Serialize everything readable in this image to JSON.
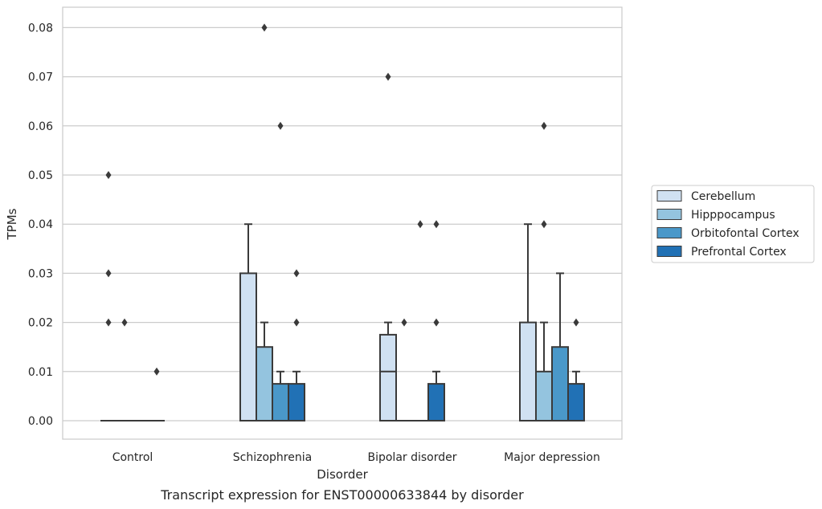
{
  "chart_data": {
    "type": "boxplot",
    "caption": "Transcript expression for ENST00000633844 by disorder",
    "xlabel": "Disorder",
    "ylabel": "TPMs",
    "ylim": [
      -0.004,
      0.084
    ],
    "yticks": [
      0.0,
      0.01,
      0.02,
      0.03,
      0.04,
      0.05,
      0.06,
      0.07,
      0.08
    ],
    "ytick_labels": [
      "0.00",
      "0.01",
      "0.02",
      "0.03",
      "0.04",
      "0.05",
      "0.06",
      "0.07",
      "0.08"
    ],
    "grid": "horizontal",
    "legend_position": "right",
    "categories": [
      "Control",
      "Schizophrenia",
      "Bipolar disorder",
      "Major depression"
    ],
    "series": [
      {
        "name": "Cerebellum",
        "color": "#d0e1f2",
        "boxes": [
          {
            "q1": 0,
            "median": 0,
            "q3": 0,
            "whisker_low": 0,
            "whisker_high": 0,
            "outliers": [
              0.05,
              0.03,
              0.02
            ]
          },
          {
            "q1": 0,
            "median": 0,
            "q3": 0.03,
            "whisker_low": 0,
            "whisker_high": 0.04,
            "outliers": []
          },
          {
            "q1": 0,
            "median": 0.01,
            "q3": 0.0175,
            "whisker_low": 0,
            "whisker_high": 0.02,
            "outliers": [
              0.07
            ]
          },
          {
            "q1": 0,
            "median": 0,
            "q3": 0.02,
            "whisker_low": 0,
            "whisker_high": 0.04,
            "outliers": []
          }
        ]
      },
      {
        "name": "Hipppocampus",
        "color": "#94c4df",
        "boxes": [
          {
            "q1": 0,
            "median": 0,
            "q3": 0,
            "whisker_low": 0,
            "whisker_high": 0,
            "outliers": [
              0.02
            ]
          },
          {
            "q1": 0,
            "median": 0,
            "q3": 0.015,
            "whisker_low": 0,
            "whisker_high": 0.02,
            "outliers": [
              0.08
            ]
          },
          {
            "q1": 0,
            "median": 0,
            "q3": 0,
            "whisker_low": 0,
            "whisker_high": 0,
            "outliers": [
              0.02
            ]
          },
          {
            "q1": 0,
            "median": 0,
            "q3": 0.01,
            "whisker_low": 0,
            "whisker_high": 0.02,
            "outliers": [
              0.06,
              0.04
            ]
          }
        ]
      },
      {
        "name": "Orbitofontal Cortex",
        "color": "#4a98c9",
        "boxes": [
          {
            "q1": 0,
            "median": 0,
            "q3": 0,
            "whisker_low": 0,
            "whisker_high": 0,
            "outliers": []
          },
          {
            "q1": 0,
            "median": 0,
            "q3": 0.0075,
            "whisker_low": 0,
            "whisker_high": 0.01,
            "outliers": [
              0.06
            ]
          },
          {
            "q1": 0,
            "median": 0,
            "q3": 0,
            "whisker_low": 0,
            "whisker_high": 0,
            "outliers": [
              0.04
            ]
          },
          {
            "q1": 0,
            "median": 0,
            "q3": 0.015,
            "whisker_low": 0,
            "whisker_high": 0.03,
            "outliers": []
          }
        ]
      },
      {
        "name": "Prefrontal Cortex",
        "color": "#2171b5",
        "boxes": [
          {
            "q1": 0,
            "median": 0,
            "q3": 0,
            "whisker_low": 0,
            "whisker_high": 0,
            "outliers": [
              0.01
            ]
          },
          {
            "q1": 0,
            "median": 0,
            "q3": 0.0075,
            "whisker_low": 0,
            "whisker_high": 0.01,
            "outliers": [
              0.03,
              0.02
            ]
          },
          {
            "q1": 0,
            "median": 0,
            "q3": 0.0075,
            "whisker_low": 0,
            "whisker_high": 0.01,
            "outliers": [
              0.04,
              0.02
            ]
          },
          {
            "q1": 0,
            "median": 0,
            "q3": 0.0075,
            "whisker_low": 0,
            "whisker_high": 0.01,
            "outliers": [
              0.02
            ]
          }
        ]
      }
    ]
  }
}
